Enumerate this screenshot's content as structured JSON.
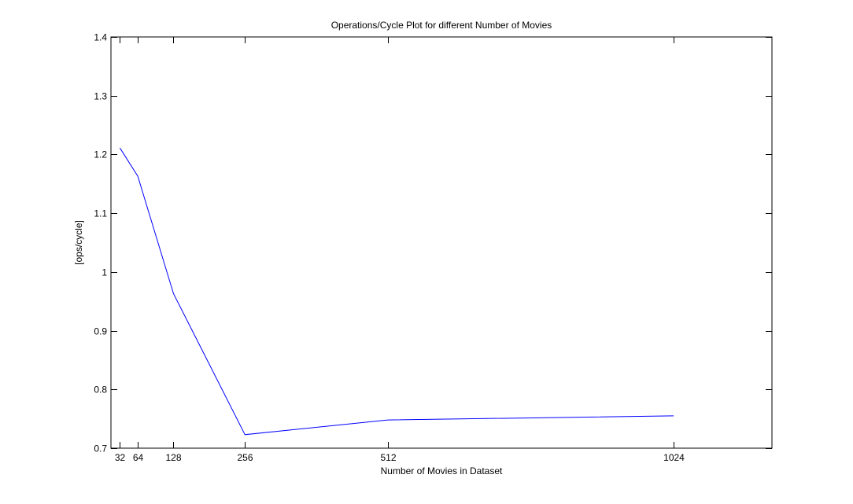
{
  "chart_data": {
    "type": "line",
    "title": "Operations/Cycle Plot for different Number of Movies",
    "xlabel": "Number of Movies in Dataset",
    "ylabel": "[ops/cycle]",
    "x": [
      32,
      64,
      128,
      256,
      512,
      1024
    ],
    "series": [
      {
        "values": [
          1.211,
          1.163,
          0.963,
          0.723,
          0.748,
          0.755
        ],
        "color": "#0000ff"
      }
    ],
    "xlim": [
      16,
      1200
    ],
    "ylim": [
      0.7,
      1.4
    ],
    "xticks": [
      32,
      64,
      128,
      256,
      512,
      1024
    ],
    "xtick_labels": [
      "32",
      "64",
      "128",
      "256",
      "512",
      "1024"
    ],
    "yticks": [
      0.7,
      0.8,
      0.9,
      1.0,
      1.1,
      1.2,
      1.3,
      1.4
    ],
    "ytick_labels": [
      "0.7",
      "0.8",
      "0.9",
      "1",
      "1.1",
      "1.2",
      "1.3",
      "1.4"
    ],
    "grid": false,
    "box": true
  }
}
